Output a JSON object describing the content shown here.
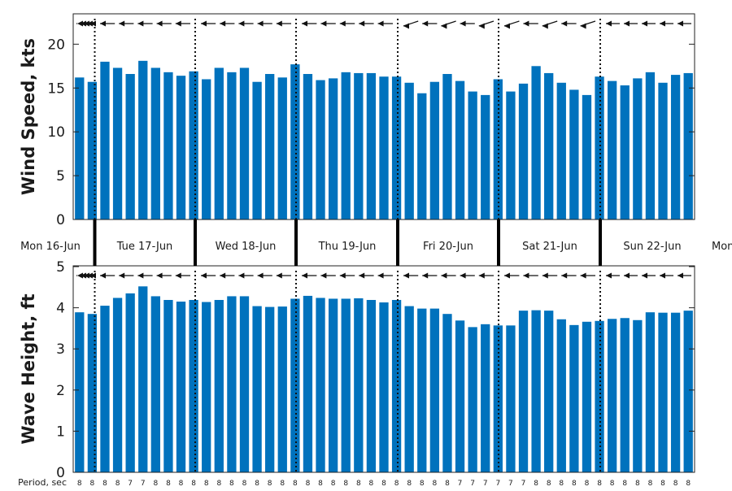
{
  "chart_data": [
    {
      "type": "bar",
      "name": "wind-speed",
      "ylabel": "Wind Speed, kts",
      "ylim": [
        0,
        23
      ],
      "yticks": [
        0,
        5,
        10,
        15,
        20
      ],
      "color": "#0072BD",
      "direction_arrows": true,
      "values": [
        16.2,
        15.7,
        18.0,
        17.3,
        16.6,
        18.1,
        17.3,
        16.8,
        16.4,
        16.9,
        16.0,
        17.3,
        16.8,
        17.3,
        15.7,
        16.6,
        16.2,
        17.7,
        16.6,
        15.9,
        16.1,
        16.8,
        16.7,
        16.7,
        16.3,
        16.3,
        15.6,
        14.4,
        15.7,
        16.6,
        15.8,
        14.6,
        14.2,
        16.0,
        14.6,
        15.5,
        17.5,
        16.7,
        15.6,
        14.8,
        14.2,
        16.3,
        15.8,
        15.3,
        16.1,
        16.8,
        15.6,
        16.5,
        16.7
      ]
    },
    {
      "type": "bar",
      "name": "wave-height",
      "ylabel": "Wave Height, ft",
      "ylim": [
        0,
        5
      ],
      "yticks": [
        0,
        1,
        2,
        3,
        4,
        5
      ],
      "color": "#0072BD",
      "direction_arrows": true,
      "values": [
        3.89,
        3.85,
        4.05,
        4.24,
        4.35,
        4.52,
        4.28,
        4.19,
        4.15,
        4.19,
        4.14,
        4.19,
        4.28,
        4.28,
        4.04,
        4.02,
        4.03,
        4.22,
        4.29,
        4.24,
        4.22,
        4.22,
        4.23,
        4.19,
        4.13,
        4.19,
        4.04,
        3.98,
        3.98,
        3.85,
        3.69,
        3.53,
        3.6,
        3.57,
        3.57,
        3.93,
        3.94,
        3.93,
        3.72,
        3.58,
        3.66,
        3.68,
        3.73,
        3.75,
        3.7,
        3.89,
        3.88,
        3.88,
        3.93
      ]
    }
  ],
  "days": [
    "Mon 16-Jun",
    "Tue 17-Jun",
    "Wed 18-Jun",
    "Thu 19-Jun",
    "Fri 20-Jun",
    "Sat 21-Jun",
    "Sun 22-Jun",
    "Mon"
  ],
  "period": {
    "label": "Period, sec",
    "values": [
      "8",
      "8",
      "8",
      "8",
      "7",
      "7",
      "8",
      "8",
      "8",
      "8",
      "8",
      "8",
      "8",
      "8",
      "8",
      "8",
      "8",
      "8",
      "8",
      "8",
      "8",
      "8",
      "8",
      "8",
      "8",
      "8",
      "8",
      "8",
      "8",
      "8",
      "7",
      "7",
      "7",
      "7",
      "7",
      "7",
      "8",
      "8",
      "8",
      "8",
      "8",
      "8",
      "8",
      "8",
      "8",
      "8",
      "8",
      "8",
      "8"
    ]
  }
}
